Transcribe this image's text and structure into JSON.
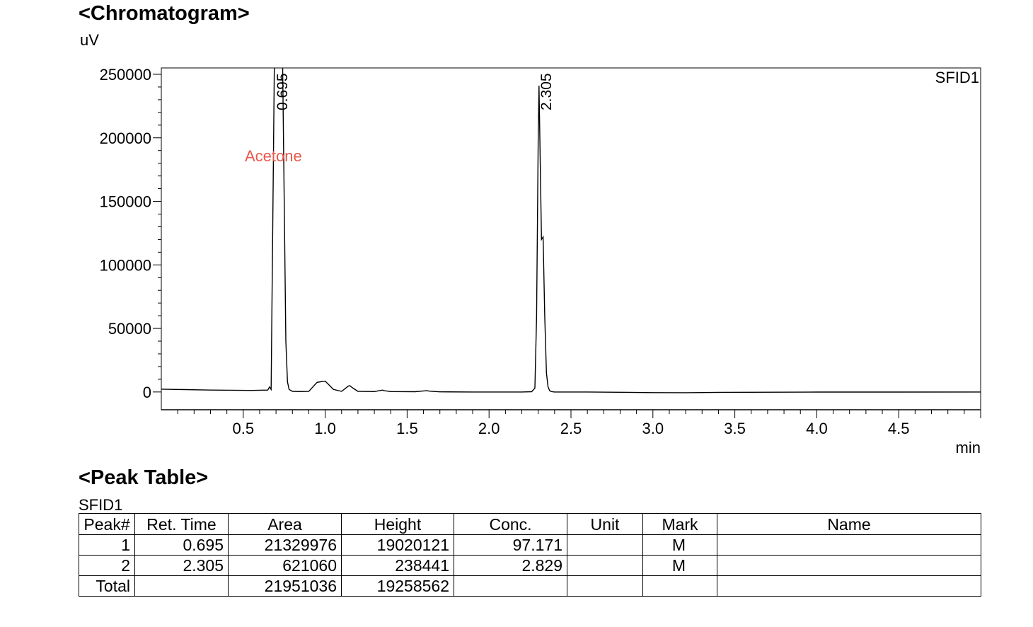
{
  "chromatogram": {
    "heading": "<Chromatogram>",
    "y_unit": "uV",
    "x_unit": "min",
    "detector_label": "SFID1",
    "annotation": "Acetone"
  },
  "chart_data": {
    "type": "line",
    "title": "<Chromatogram>",
    "xlabel": "min",
    "ylabel": "uV",
    "xlim": [
      0,
      5.0
    ],
    "ylim": [
      -14000,
      255000
    ],
    "x_ticks": [
      0.5,
      1.0,
      1.5,
      2.0,
      2.5,
      3.0,
      3.5,
      4.0,
      4.5
    ],
    "x_tick_labels": [
      "0.5",
      "1.0",
      "1.5",
      "2.0",
      "2.5",
      "3.0",
      "3.5",
      "4.0",
      "4.5"
    ],
    "y_ticks": [
      0,
      50000,
      100000,
      150000,
      200000,
      250000
    ],
    "y_tick_labels": [
      "0",
      "50000",
      "100000",
      "150000",
      "200000",
      "250000"
    ],
    "series": [
      {
        "name": "SFID1",
        "x": [
          0.0,
          0.3,
          0.55,
          0.65,
          0.66,
          0.67,
          0.69,
          0.7,
          0.71,
          0.72,
          0.73,
          0.74,
          0.75,
          0.76,
          0.77,
          0.78,
          0.8,
          0.85,
          0.9,
          0.95,
          0.97,
          1.0,
          1.02,
          1.05,
          1.1,
          1.14,
          1.15,
          1.17,
          1.2,
          1.3,
          1.34,
          1.35,
          1.36,
          1.4,
          1.55,
          1.6,
          1.62,
          1.64,
          1.7,
          1.9,
          2.0,
          2.2,
          2.26,
          2.28,
          2.29,
          2.3,
          2.305,
          2.31,
          2.32,
          2.33,
          2.34,
          2.35,
          2.36,
          2.37,
          2.38,
          2.4,
          2.6,
          3.0,
          3.2,
          3.4,
          4.0,
          4.5,
          5.0
        ],
        "y": [
          2200,
          1500,
          1200,
          1500,
          4000,
          2000,
          260000,
          260000,
          260000,
          260000,
          260000,
          260000,
          150000,
          40000,
          8000,
          2000,
          500,
          300,
          400,
          7500,
          8000,
          8500,
          6000,
          2000,
          500,
          4500,
          5000,
          3000,
          500,
          300,
          1200,
          1500,
          1000,
          300,
          200,
          800,
          1000,
          600,
          100,
          0,
          0,
          0,
          200,
          3000,
          60000,
          200000,
          241000,
          200000,
          120000,
          122000,
          60000,
          15000,
          4000,
          1000,
          300,
          0,
          0,
          -500,
          -600,
          -300,
          -100,
          -100,
          0
        ]
      }
    ],
    "peak_labels": [
      {
        "x": 0.695,
        "text": "0.695"
      },
      {
        "x": 2.305,
        "text": "2.305"
      }
    ],
    "annotations": [
      {
        "text": "Acetone",
        "x": 0.5,
        "y": 185000,
        "color": "#e8584c"
      }
    ],
    "grid": false,
    "line_color": "#000000"
  },
  "peak_table": {
    "heading": "<Peak Table>",
    "label": "SFID1",
    "columns": [
      "Peak#",
      "Ret. Time",
      "Area",
      "Height",
      "Conc.",
      "Unit",
      "Mark",
      "Name"
    ],
    "rows": [
      [
        "1",
        "0.695",
        "21329976",
        "19020121",
        "97.171",
        "",
        "M",
        ""
      ],
      [
        "2",
        "2.305",
        "621060",
        "238441",
        "2.829",
        "",
        "M",
        ""
      ],
      [
        "Total",
        "",
        "21951036",
        "19258562",
        "",
        "",
        "",
        ""
      ]
    ]
  }
}
